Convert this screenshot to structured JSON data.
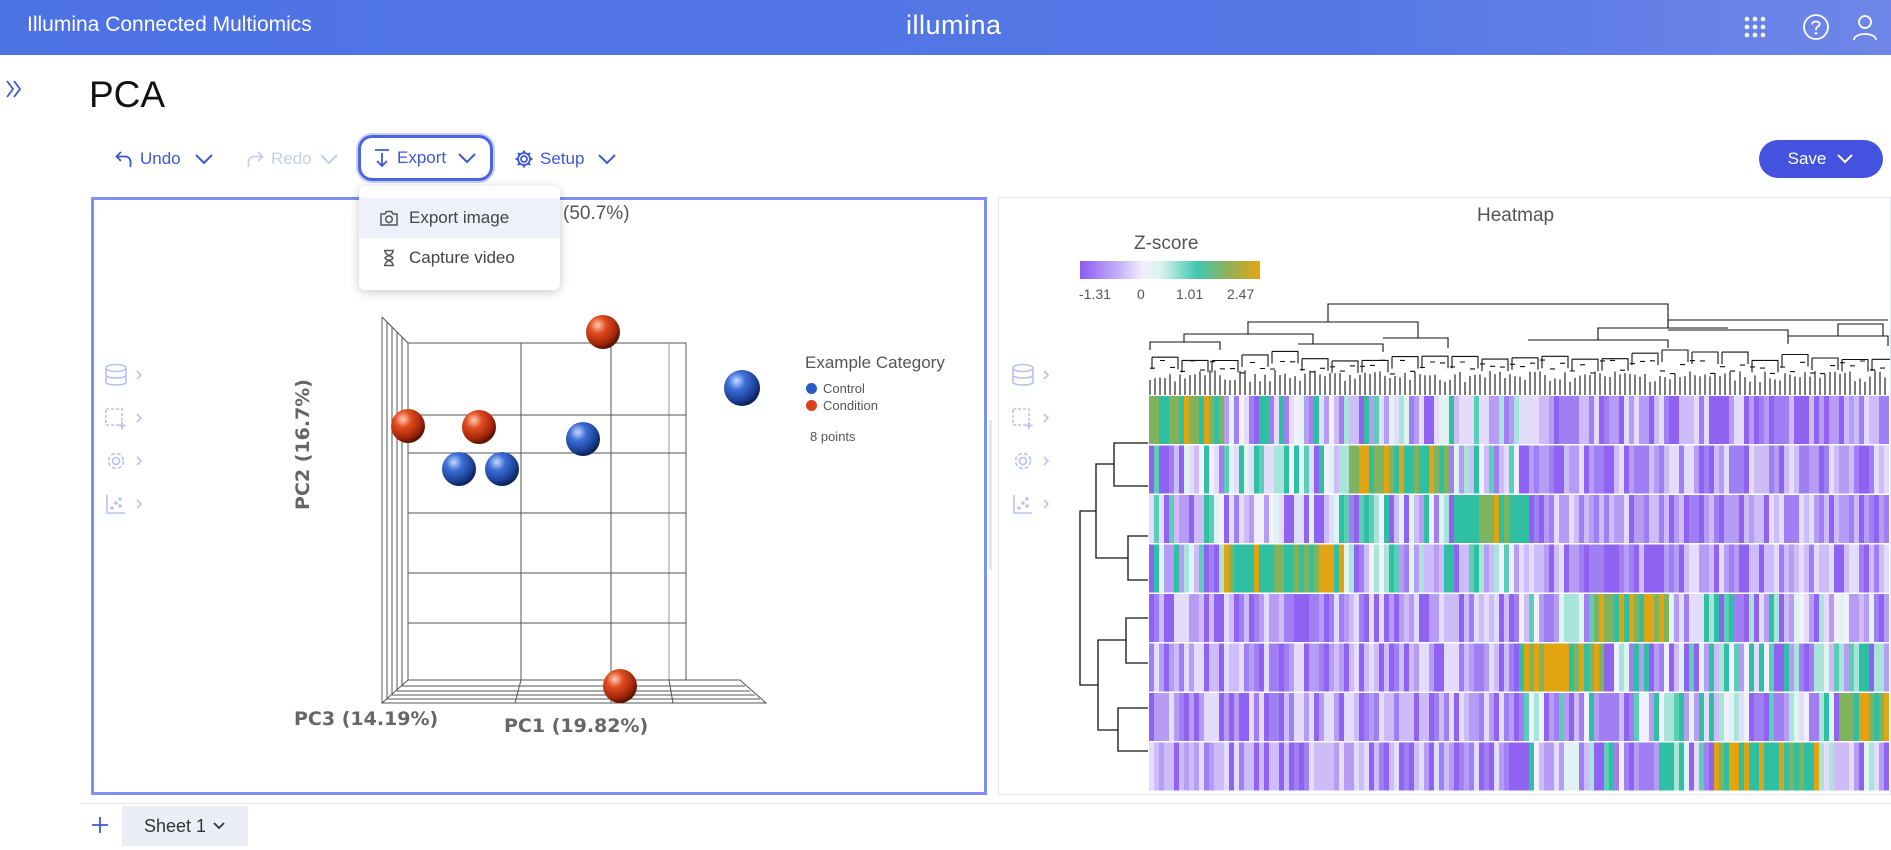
{
  "header": {
    "app_title": "Illumina Connected Multiomics",
    "logo_text": "illumina",
    "icons": [
      "apps-grid-icon",
      "help-icon",
      "user-icon"
    ]
  },
  "page": {
    "title": "PCA"
  },
  "toolbar": {
    "undo_label": "Undo",
    "redo_label": "Redo",
    "export_label": "Export",
    "setup_label": "Setup",
    "save_label": "Save"
  },
  "export_menu": {
    "items": [
      {
        "label": "Export image",
        "icon": "camera-icon"
      },
      {
        "label": "Capture video",
        "icon": "hourglass-icon"
      }
    ]
  },
  "pca_panel": {
    "title_visible": "(50.7%)",
    "axes": {
      "pc1": "PC1 (19.82%)",
      "pc2": "PC2 (16.7%)",
      "pc3": "PC3 (14.19%)"
    },
    "legend": {
      "title": "Example Category",
      "items": [
        {
          "label": "Control",
          "color": "#2b5bc4"
        },
        {
          "label": "Condition",
          "color": "#d9401b"
        }
      ],
      "points_count": "8 points"
    }
  },
  "heatmap_panel": {
    "title": "Heatmap",
    "zscore": {
      "title": "Z-score",
      "ticks": [
        "-1.31",
        "0",
        "1.01",
        "2.47"
      ]
    }
  },
  "sheets": {
    "active": "Sheet 1"
  },
  "chart_data": {
    "type": "scatter",
    "title": "",
    "xlabel": "PC1 (19.82%)",
    "ylabel": "PC2 (16.7%)",
    "zlabel": "PC3 (14.19%)",
    "series": [
      {
        "name": "Control",
        "color": "#2b5bc4",
        "count": 4
      },
      {
        "name": "Condition",
        "color": "#d9401b",
        "count": 4
      }
    ]
  }
}
